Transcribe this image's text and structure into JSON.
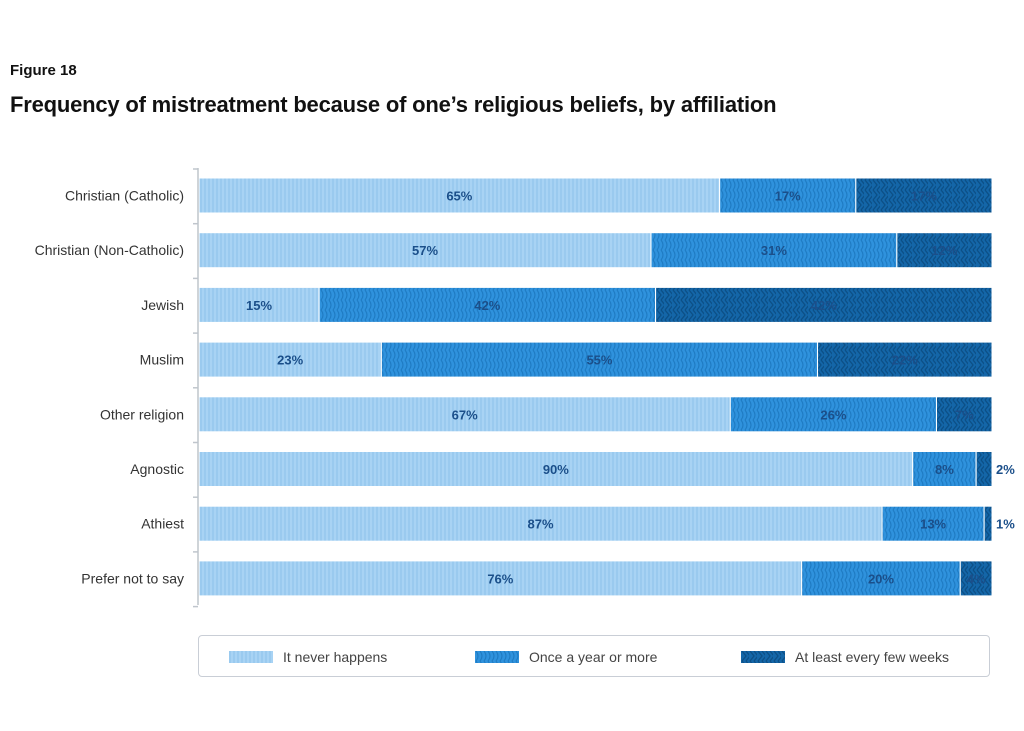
{
  "figure_label": "Figure 18",
  "title": "Frequency of mistreatment because of one’s religious beliefs, by affiliation",
  "colors": {
    "never": "#a8d3f4",
    "never_stripe": "#8cc2ea",
    "yearly": "#2f92dd",
    "yearly_stripe": "#1f7cc4",
    "weeks": "#1466a8",
    "weeks_stripe": "#0c4f86",
    "label_text": "#1b4f8a",
    "axis": "#bfc5cc"
  },
  "chart_data": {
    "type": "bar",
    "orientation": "horizontal",
    "stacked": true,
    "title": "Frequency of mistreatment because of one’s religious beliefs, by affiliation",
    "categories": [
      "Christian (Catholic)",
      "Christian (Non-Catholic)",
      "Jewish",
      "Muslim",
      "Other religion",
      "Agnostic",
      "Athiest",
      "Prefer not to say"
    ],
    "series": [
      {
        "name": "It never happens",
        "key": "never",
        "values": [
          65,
          57,
          15,
          23,
          67,
          90,
          87,
          76
        ],
        "labels": [
          "65%",
          "57%",
          "15%",
          "23%",
          "67%",
          "90%",
          "87%",
          "76%"
        ]
      },
      {
        "name": "Once a year or more",
        "key": "yearly",
        "values": [
          17,
          31,
          42,
          55,
          26,
          8,
          13,
          20
        ],
        "labels": [
          "17%",
          "31%",
          "42%",
          "55%",
          "26%",
          "8%",
          "13%",
          "20%"
        ]
      },
      {
        "name": "At least every few weeks",
        "key": "weeks",
        "values": [
          17,
          12,
          42,
          22,
          7,
          2,
          1,
          4
        ],
        "labels": [
          "17%",
          "12%",
          "42%",
          "22%",
          "7%",
          "2%",
          "1%",
          "4%"
        ]
      }
    ],
    "legend_position": "bottom",
    "grid": false
  }
}
